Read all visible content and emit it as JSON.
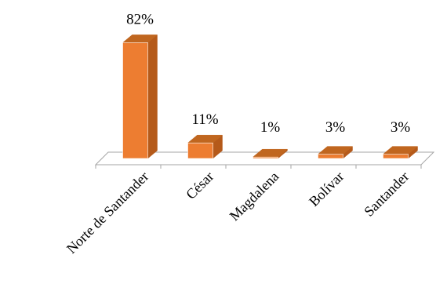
{
  "chart_data": {
    "type": "bar",
    "style": "3d-column",
    "categories": [
      "Norte de Santander",
      "César",
      "Magdalena",
      "Bolívar",
      "Santander"
    ],
    "values": [
      82,
      11,
      1,
      3,
      3
    ],
    "data_labels": [
      "82%",
      "11%",
      "1%",
      "3%",
      "3%"
    ],
    "ylim": [
      0,
      100
    ],
    "grid": false,
    "legend": "none",
    "colors": {
      "front": "#ED7D31",
      "side": "#B55A1A",
      "top": "#C0661F",
      "axis": "#A6A6A6"
    }
  }
}
